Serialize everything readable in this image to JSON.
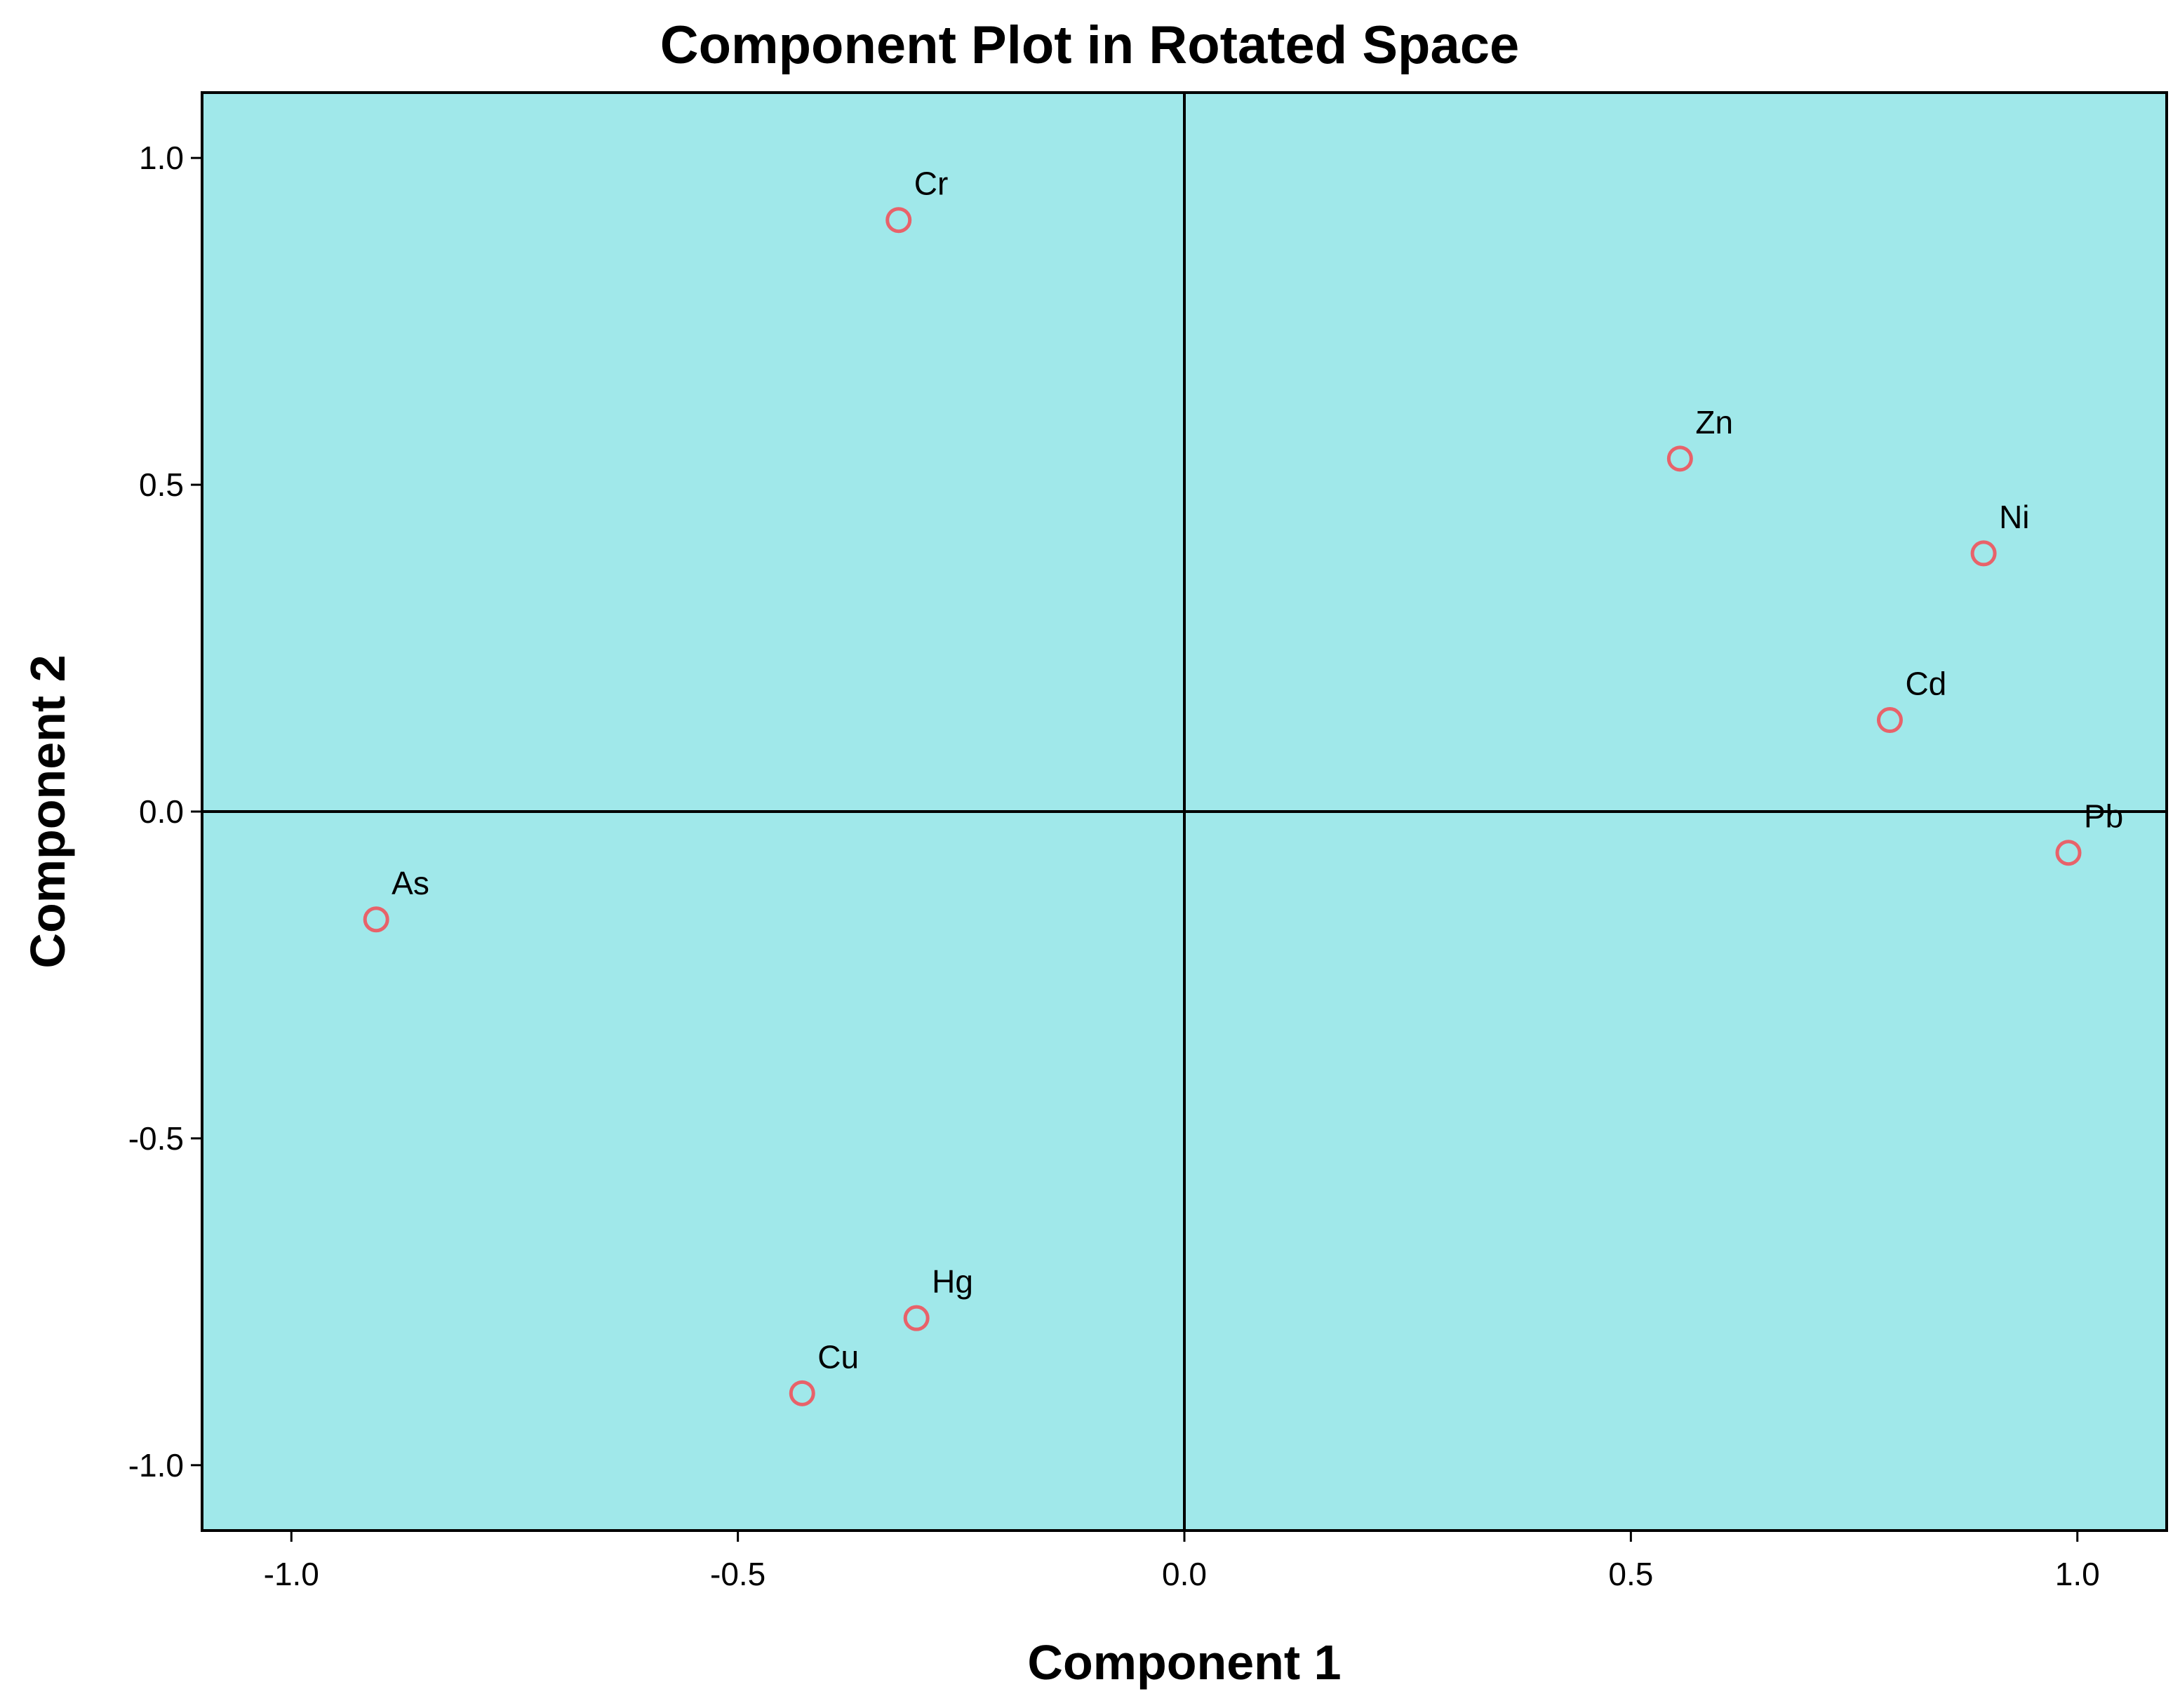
{
  "chart_data": {
    "type": "scatter",
    "title": "Component Plot in Rotated Space",
    "xlabel": "Component 1",
    "ylabel": "Component 2",
    "xlim": [
      -1.1,
      1.1
    ],
    "ylim": [
      -1.1,
      1.1
    ],
    "x_ticks": [
      -1.0,
      -0.5,
      0.0,
      0.5,
      1.0
    ],
    "x_tick_labels": [
      "-1.0",
      "-0.5",
      "0.0",
      "0.5",
      "1.0"
    ],
    "y_ticks": [
      1.0,
      0.5,
      0.0,
      -0.5,
      -1.0
    ],
    "y_tick_labels": [
      "1.0",
      "0.5",
      "0.0",
      "-0.5",
      "-1.0"
    ],
    "grid": false,
    "reference_lines": {
      "x": 0,
      "y": 0
    },
    "points": [
      {
        "label": "Cr",
        "x": -0.32,
        "y": 0.905
      },
      {
        "label": "Zn",
        "x": 0.555,
        "y": 0.54
      },
      {
        "label": "Ni",
        "x": 0.895,
        "y": 0.395
      },
      {
        "label": "Cd",
        "x": 0.79,
        "y": 0.14
      },
      {
        "label": "Pb",
        "x": 0.99,
        "y": -0.063
      },
      {
        "label": "As",
        "x": -0.905,
        "y": -0.165
      },
      {
        "label": "Hg",
        "x": -0.3,
        "y": -0.775
      },
      {
        "label": "Cu",
        "x": -0.428,
        "y": -0.89
      }
    ],
    "colors": {
      "plot_background": "#a0e8ea",
      "marker": "#e8626a",
      "axes": "#000000"
    }
  }
}
